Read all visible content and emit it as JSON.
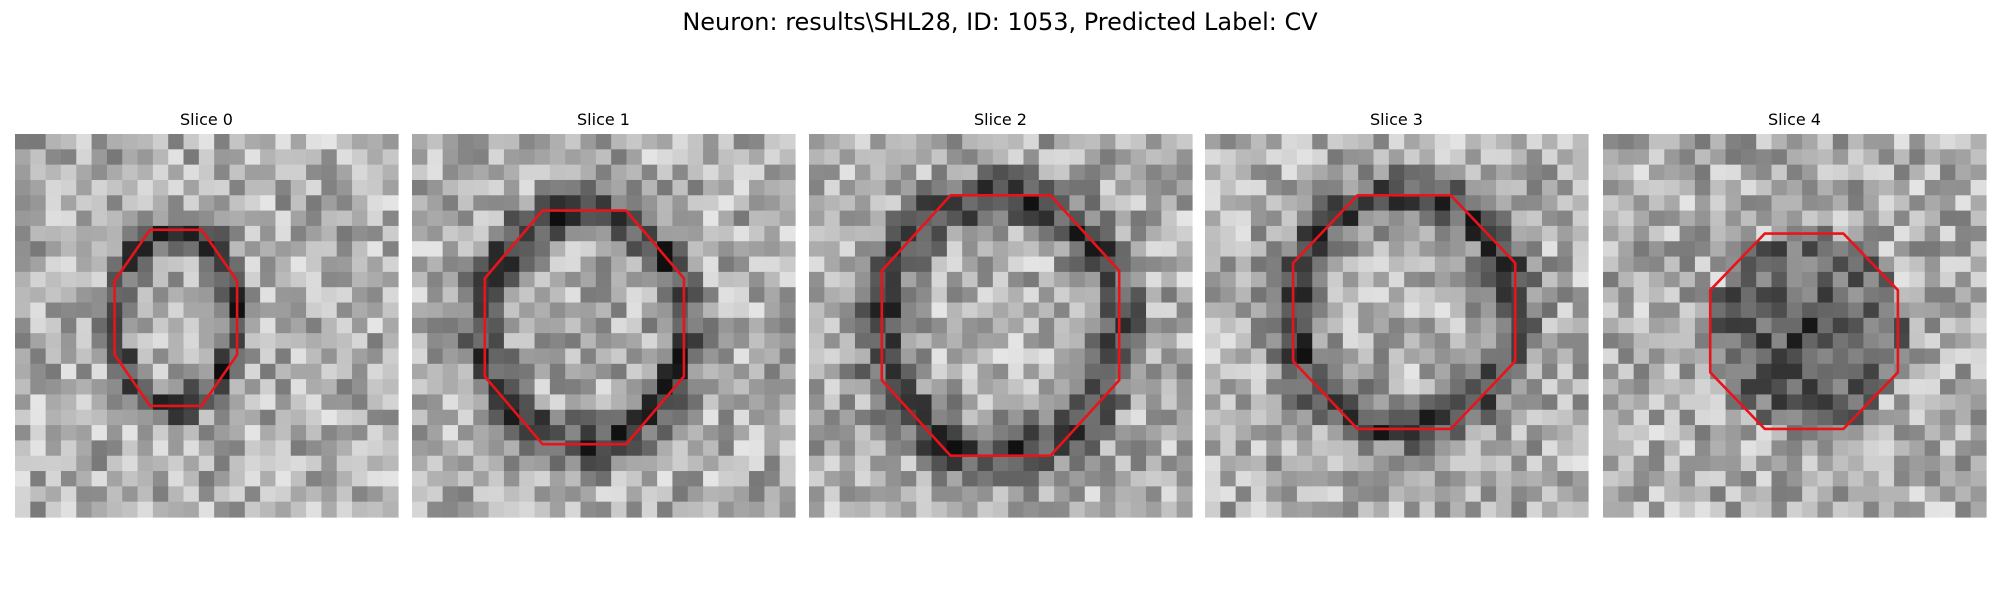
{
  "header": {
    "title": "Neuron: results\\SHL28, ID: 1053, Predicted Label: CV"
  },
  "panels": [
    {
      "title": "Slice 0"
    },
    {
      "title": "Slice 1"
    },
    {
      "title": "Slice 2"
    },
    {
      "title": "Slice 3"
    },
    {
      "title": "Slice 4"
    }
  ]
}
